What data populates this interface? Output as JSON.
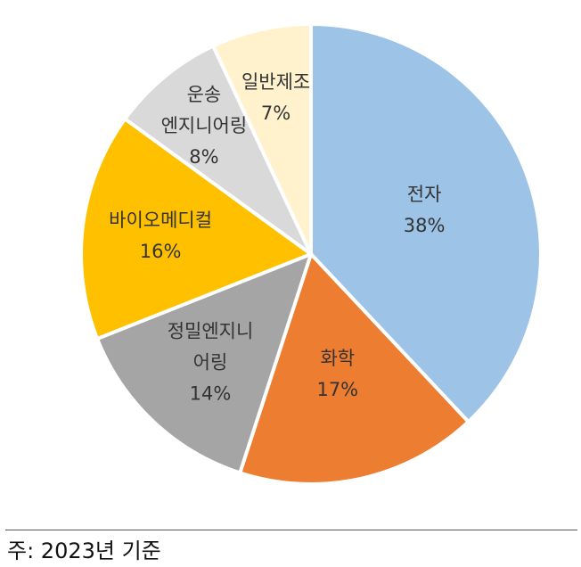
{
  "chart_data": {
    "type": "pie",
    "start_angle_deg": 0,
    "direction": "clockwise",
    "slices": [
      {
        "label": [
          "전자"
        ],
        "value": 38,
        "value_label": "38%",
        "color": "#9DC3E6"
      },
      {
        "label": [
          "화학"
        ],
        "value": 17,
        "value_label": "17%",
        "color": "#ED7D31"
      },
      {
        "label": [
          "정밀엔지니",
          "어링"
        ],
        "value": 14,
        "value_label": "14%",
        "color": "#A5A5A5"
      },
      {
        "label": [
          "바이오메디컬"
        ],
        "value": 16,
        "value_label": "16%",
        "color": "#FFC000"
      },
      {
        "label": [
          "운송",
          "엔지니어링"
        ],
        "value": 8,
        "value_label": "8%",
        "color": "#D9D9D9"
      },
      {
        "label": [
          "일반제조"
        ],
        "value": 7,
        "value_label": "7%",
        "color": "#FFF2CC"
      }
    ]
  },
  "footnote": "주: 2023년 기준"
}
